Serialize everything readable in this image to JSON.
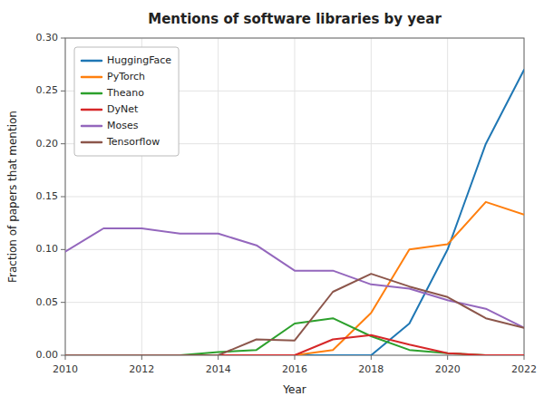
{
  "chart_data": {
    "type": "line",
    "title": "Mentions of software libraries by year",
    "xlabel": "Year",
    "ylabel": "Fraction of papers that mention",
    "x": [
      2010,
      2011,
      2012,
      2013,
      2014,
      2015,
      2016,
      2017,
      2018,
      2019,
      2020,
      2021,
      2022
    ],
    "series": [
      {
        "name": "HuggingFace",
        "color": "#1f77b4",
        "values": [
          0.0,
          0.0,
          0.0,
          0.0,
          0.0,
          0.0,
          0.0,
          0.0,
          0.0,
          0.03,
          0.1,
          0.2,
          0.27
        ]
      },
      {
        "name": "PyTorch",
        "color": "#ff7f0e",
        "values": [
          0.0,
          0.0,
          0.0,
          0.0,
          0.0,
          0.0,
          0.0,
          0.005,
          0.04,
          0.1,
          0.105,
          0.145,
          0.133
        ]
      },
      {
        "name": "Theano",
        "color": "#2ca02c",
        "values": [
          0.0,
          0.0,
          0.0,
          0.0,
          0.003,
          0.005,
          0.03,
          0.035,
          0.018,
          0.005,
          0.002,
          0.0,
          0.0
        ]
      },
      {
        "name": "DyNet",
        "color": "#d62728",
        "values": [
          0.0,
          0.0,
          0.0,
          0.0,
          0.0,
          0.0,
          0.0,
          0.015,
          0.019,
          0.01,
          0.002,
          0.0,
          0.0
        ]
      },
      {
        "name": "Moses",
        "color": "#9467bd",
        "values": [
          0.098,
          0.12,
          0.12,
          0.115,
          0.115,
          0.104,
          0.08,
          0.08,
          0.067,
          0.063,
          0.052,
          0.044,
          0.026
        ]
      },
      {
        "name": "Tensorflow",
        "color": "#8c564b",
        "values": [
          0.0,
          0.0,
          0.0,
          0.0,
          0.0,
          0.015,
          0.014,
          0.06,
          0.077,
          0.065,
          0.055,
          0.035,
          0.026
        ]
      }
    ],
    "xlim": [
      2010,
      2022
    ],
    "xticks": [
      2010,
      2012,
      2014,
      2016,
      2018,
      2020,
      2022
    ],
    "ylim": [
      0.0,
      0.3
    ],
    "yticks": [
      {
        "value": 0.0,
        "label": "0.00"
      },
      0.05,
      {
        "value": 0.1,
        "label": "0.10"
      },
      0.15,
      {
        "value": 0.2,
        "label": "0.20"
      },
      0.25,
      {
        "value": 0.3,
        "label": "0.30"
      }
    ],
    "grid": true,
    "legend": "upper left"
  }
}
